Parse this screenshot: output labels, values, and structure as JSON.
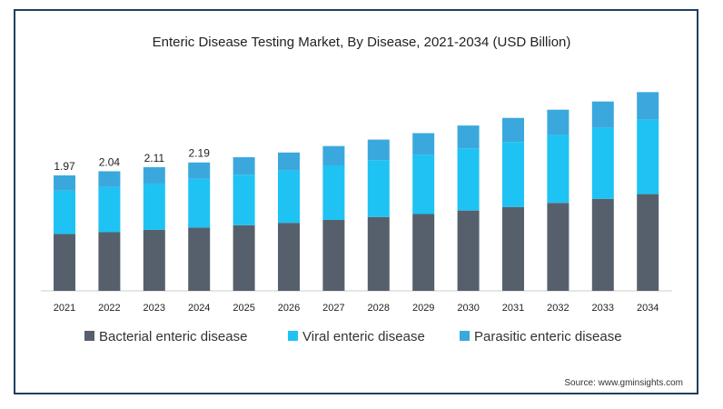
{
  "chart_data": {
    "type": "bar",
    "stacked": true,
    "title": "Enteric Disease Testing Market, By Disease, 2021-2034 (USD Billion)",
    "xlabel": "",
    "ylabel": "",
    "categories": [
      "2021",
      "2022",
      "2023",
      "2024",
      "2025",
      "2026",
      "2027",
      "2028",
      "2029",
      "2030",
      "2031",
      "2032",
      "2033",
      "2034"
    ],
    "series": [
      {
        "name": "Bacterial enteric disease",
        "color": "#56606d",
        "values": [
          0.97,
          1.0,
          1.04,
          1.08,
          1.12,
          1.16,
          1.21,
          1.26,
          1.31,
          1.37,
          1.43,
          1.5,
          1.57,
          1.65
        ]
      },
      {
        "name": "Viral enteric disease",
        "color": "#1ec3f3",
        "values": [
          0.74,
          0.77,
          0.79,
          0.83,
          0.86,
          0.89,
          0.93,
          0.97,
          1.01,
          1.06,
          1.11,
          1.16,
          1.21,
          1.27
        ]
      },
      {
        "name": "Parasitic enteric disease",
        "color": "#3ba8dd",
        "values": [
          0.26,
          0.27,
          0.28,
          0.28,
          0.3,
          0.31,
          0.33,
          0.35,
          0.37,
          0.39,
          0.41,
          0.43,
          0.45,
          0.47
        ]
      }
    ],
    "data_labels": [
      "1.97",
      "2.04",
      "2.11",
      "2.19",
      "",
      "",
      "",
      "",
      "",
      "",
      "",
      "",
      "",
      ""
    ],
    "ylim": [
      0,
      4.0
    ],
    "grid": false,
    "legend_position": "bottom"
  },
  "source": "Source: www.gminsights.com"
}
